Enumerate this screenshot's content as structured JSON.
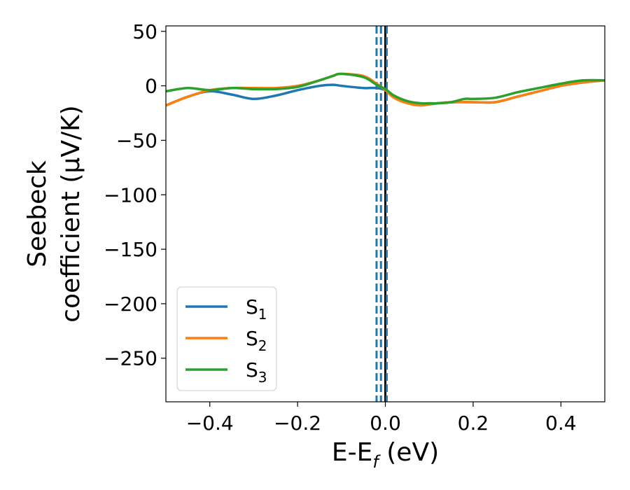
{
  "chart_data": {
    "type": "line",
    "xlabel_main": "E-E",
    "xlabel_sub": "f",
    "xlabel_unit": " (eV)",
    "ylabel_line1": "Seebeck",
    "ylabel_line2": "coefficient  (μV/K)",
    "xlim": [
      -0.5,
      0.5
    ],
    "ylim": [
      -290,
      55
    ],
    "xticks": [
      -0.4,
      -0.2,
      0.0,
      0.2,
      0.4
    ],
    "xtick_labels": [
      "−0.4",
      "−0.2",
      "0.0",
      "0.2",
      "0.4"
    ],
    "yticks": [
      50,
      0,
      -50,
      -100,
      -150,
      -200,
      -250
    ],
    "ytick_labels": [
      "50",
      "0",
      "−50",
      "−100",
      "−150",
      "−200",
      "−250"
    ],
    "grid": false,
    "legend_position": "lower-left",
    "vlines": [
      {
        "x": -0.02,
        "style": "dashed",
        "color": "#1f77b4"
      },
      {
        "x": -0.01,
        "style": "dashed",
        "color": "#1f77b4"
      },
      {
        "x": 0.0,
        "style": "solid",
        "color": "#000000"
      },
      {
        "x": 0.003,
        "style": "dashed",
        "color": "#1f77b4"
      }
    ],
    "series": [
      {
        "label_main": "S",
        "label_sub": "1",
        "color": "#1f77b4",
        "x": [
          -0.5,
          -0.45,
          -0.4,
          -0.35,
          -0.3,
          -0.25,
          -0.2,
          -0.15,
          -0.12,
          -0.1,
          -0.05,
          -0.02,
          0.0,
          0.02,
          0.05,
          0.08,
          0.1,
          0.12,
          0.15,
          0.2,
          0.25,
          0.3,
          0.35,
          0.4,
          0.45,
          0.5
        ],
        "y": [
          -18,
          -10,
          -5,
          -8,
          -12,
          -9,
          -4,
          0,
          1,
          0,
          -2,
          -2,
          -4,
          -10,
          -15,
          -17,
          -17,
          -16,
          -15,
          -15,
          -15,
          -10,
          -5,
          0,
          3,
          5
        ]
      },
      {
        "label_main": "S",
        "label_sub": "2",
        "color": "#ff7f0e",
        "x": [
          -0.5,
          -0.45,
          -0.4,
          -0.35,
          -0.3,
          -0.25,
          -0.2,
          -0.15,
          -0.12,
          -0.1,
          -0.05,
          -0.02,
          0.0,
          0.02,
          0.05,
          0.08,
          0.1,
          0.12,
          0.15,
          0.2,
          0.25,
          0.3,
          0.35,
          0.4,
          0.45,
          0.5
        ],
        "y": [
          -18,
          -10,
          -4,
          -2,
          -2,
          -2,
          0,
          5,
          9,
          11,
          9,
          2,
          -4,
          -11,
          -16,
          -18,
          -17,
          -16,
          -15,
          -15,
          -15,
          -10,
          -5,
          0,
          3,
          5
        ]
      },
      {
        "label_main": "S",
        "label_sub": "3",
        "color": "#2ca02c",
        "x": [
          -0.5,
          -0.45,
          -0.4,
          -0.35,
          -0.3,
          -0.25,
          -0.2,
          -0.15,
          -0.12,
          -0.1,
          -0.05,
          -0.02,
          0.0,
          0.02,
          0.05,
          0.08,
          0.1,
          0.12,
          0.15,
          0.18,
          0.2,
          0.25,
          0.3,
          0.35,
          0.4,
          0.45,
          0.5
        ],
        "y": [
          -5,
          -2,
          -4,
          -2,
          -3,
          -3,
          -1,
          5,
          9,
          11,
          8,
          1,
          -3,
          -9,
          -14,
          -16,
          -16,
          -16,
          -15,
          -12,
          -12,
          -11,
          -6,
          -2,
          2,
          5,
          5
        ]
      }
    ]
  }
}
